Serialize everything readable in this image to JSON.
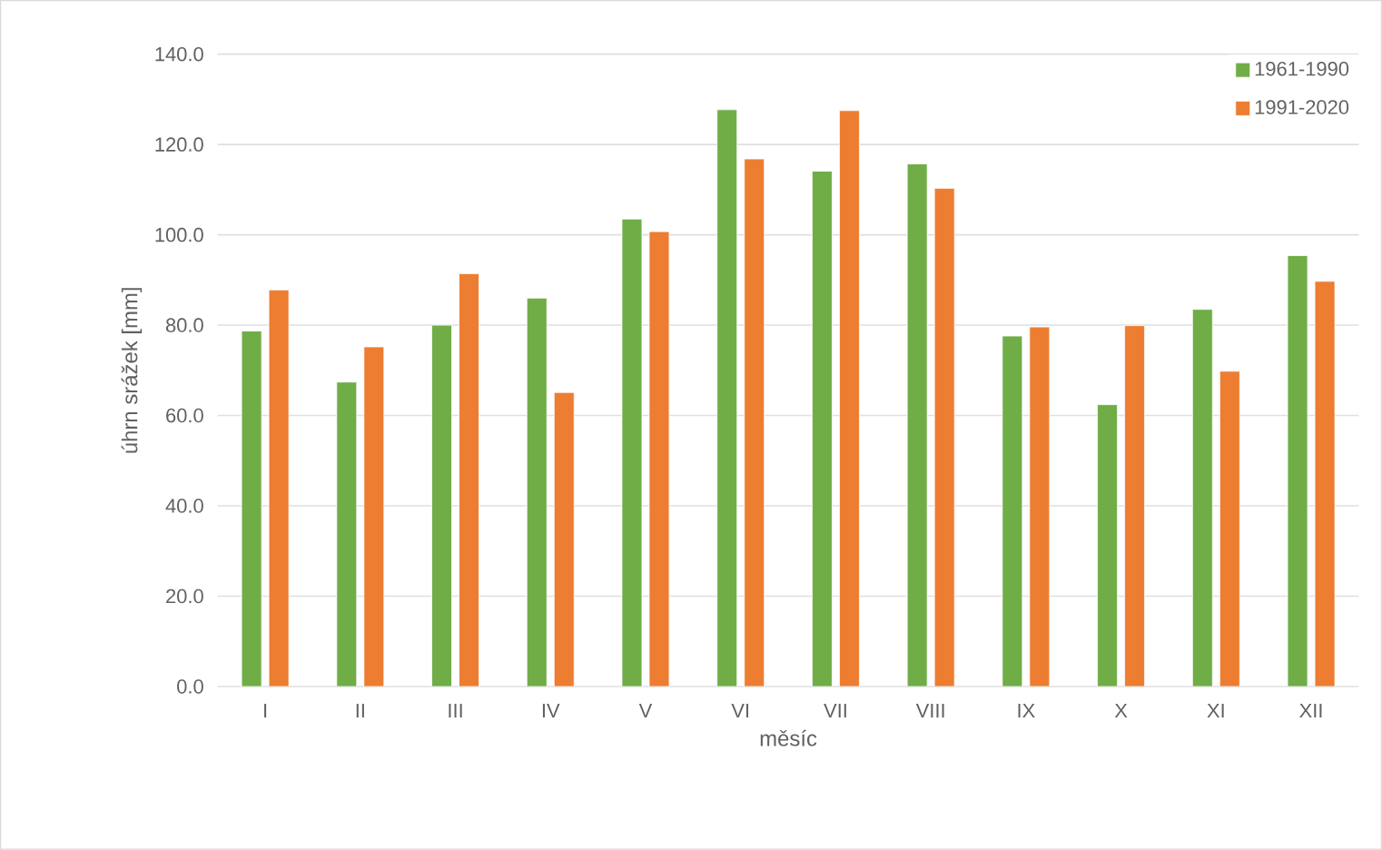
{
  "chart_data": {
    "type": "bar",
    "xlabel": "měsíc",
    "ylabel": "úhrn srážek [mm]",
    "categories": [
      "I",
      "II",
      "III",
      "IV",
      "V",
      "VI",
      "VII",
      "VIII",
      "IX",
      "X",
      "XI",
      "XII"
    ],
    "series": [
      {
        "name": "1961-1990",
        "color": "#70ad47",
        "values": [
          78.7,
          67.4,
          80.0,
          86.0,
          103.5,
          127.7,
          114.1,
          115.7,
          77.6,
          62.4,
          83.5,
          95.4
        ]
      },
      {
        "name": "1991-2020",
        "color": "#ed7d31",
        "values": [
          87.8,
          75.2,
          91.4,
          65.1,
          100.7,
          116.8,
          127.5,
          110.3,
          79.6,
          79.9,
          69.8,
          89.7
        ]
      }
    ],
    "ylim": [
      0,
      140
    ],
    "yticks": [
      {
        "value": 0,
        "label": "0.0"
      },
      {
        "value": 20,
        "label": "20.0"
      },
      {
        "value": 40,
        "label": "40.0"
      },
      {
        "value": 60,
        "label": "60.0"
      },
      {
        "value": 80,
        "label": "80.0"
      },
      {
        "value": 100,
        "label": "100.0"
      },
      {
        "value": 120,
        "label": "120.0"
      },
      {
        "value": 140,
        "label": "140.0"
      }
    ],
    "grid": "y",
    "legend": "top right"
  }
}
